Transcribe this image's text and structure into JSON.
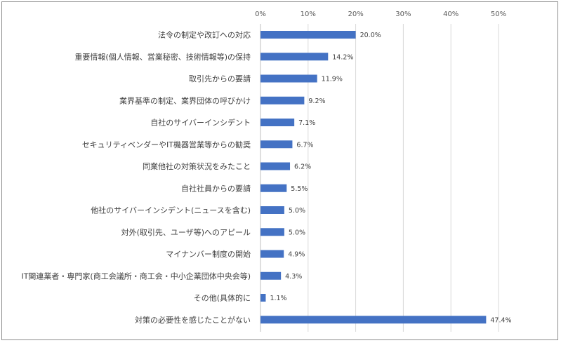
{
  "chart_data": {
    "type": "bar",
    "orientation": "horizontal",
    "title": "",
    "xlabel": "",
    "ylabel": "",
    "xlim": [
      0,
      50
    ],
    "x_ticks": [
      "0%",
      "10%",
      "20%",
      "30%",
      "40%",
      "50%"
    ],
    "x_tick_values": [
      0,
      10,
      20,
      30,
      40,
      50
    ],
    "grid": true,
    "bar_color": "#4472c4",
    "categories": [
      "法令の制定や改訂への対応",
      "重要情報(個人情報、営業秘密、技術情報等)の保持",
      "取引先からの要請",
      "業界基準の制定、業界団体の呼びかけ",
      "自社のサイバーインシデント",
      "セキュリティベンダーやIT機器営業等からの勧奨",
      "同業他社の対策状況をみたこと",
      "自社社員からの要請",
      "他社のサイバーインシデント(ニュースを含む)",
      "対外(取引先、ユーザ等)へのアピール",
      "マイナンバー制度の開始",
      "IT関連業者・専門家(商工会議所・商工会・中小企業団体中央会等)",
      "その他(具体的に",
      "対策の必要性を感じたことがない"
    ],
    "values": [
      20.0,
      14.2,
      11.9,
      9.2,
      7.1,
      6.7,
      6.2,
      5.5,
      5.0,
      5.0,
      4.9,
      4.3,
      1.1,
      47.4
    ],
    "value_labels": [
      "20.0%",
      "14.2%",
      "11.9%",
      "9.2%",
      "7.1%",
      "6.7%",
      "6.2%",
      "5.5%",
      "5.0%",
      "5.0%",
      "4.9%",
      "4.3%",
      "1.1%",
      "47.4%"
    ]
  }
}
